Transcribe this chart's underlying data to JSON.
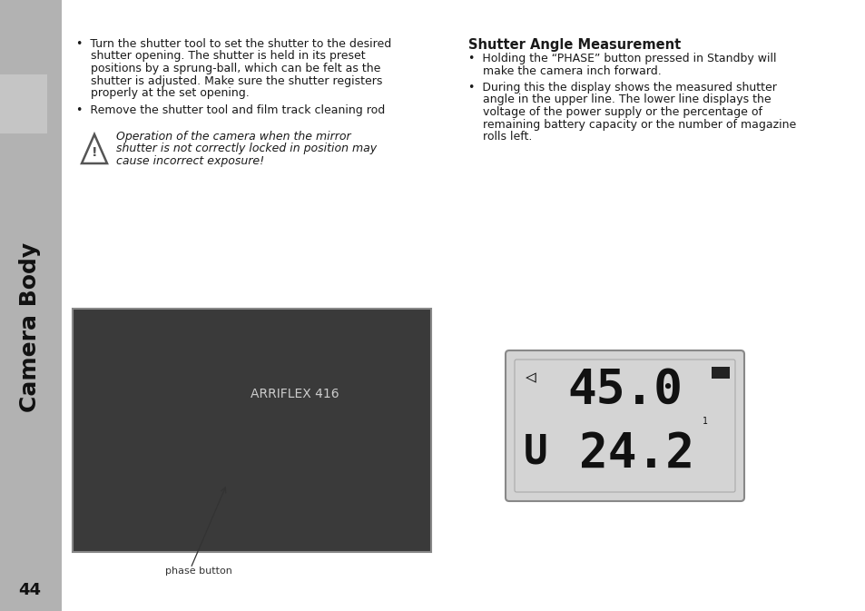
{
  "page_bg": "#f0f0f0",
  "sidebar_bg": "#b2b2b2",
  "sidebar_text": "Camera Body",
  "sidebar_text_color": "#111111",
  "page_number": "44",
  "content_bg": "#ffffff",
  "body_font_size": 9.0,
  "title_font_size": 10.5,
  "right_title": "Shutter Angle Measurement",
  "warning_text_lines": [
    "Operation of the camera when the mirror",
    "shutter is not correctly locked in position may",
    "cause incorrect exposure!"
  ],
  "left_bullet1_lines": [
    "•  Turn the shutter tool to set the shutter to the desired",
    "    shutter opening. The shutter is held in its preset",
    "    positions by a sprung-ball, which can be felt as the",
    "    shutter is adjusted. Make sure the shutter registers",
    "    properly at the set opening."
  ],
  "left_bullet2_lines": [
    "•  Remove the shutter tool and film track cleaning rod"
  ],
  "right_bullet1_lines": [
    "•  Holding the “PHASE” button pressed in Standby will",
    "    make the camera inch forward."
  ],
  "right_bullet2_lines": [
    "•  During this the display shows the measured shutter",
    "    angle in the upper line. The lower line displays the",
    "    voltage of the power supply or the percentage of",
    "    remaining battery capacity or the number of magazine",
    "    rolls left."
  ],
  "display_upper_prefix": "◁",
  "display_upper_text": "45.0",
  "display_lower_prefix": "U",
  "display_lower_text": "24.2",
  "display_superscript": "1",
  "display_bg": "#d4d4d4",
  "display_border_color": "#888888",
  "display_text_color": "#111111",
  "camera_label": "phase button",
  "cam_box_color": "#3a3a3a",
  "cam_border_color": "#888888"
}
